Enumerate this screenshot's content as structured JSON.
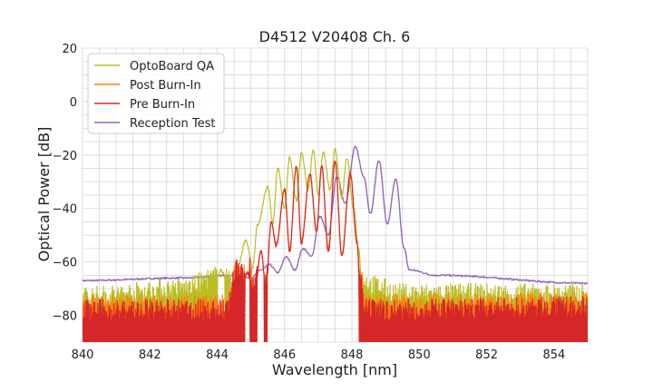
{
  "chart_data": {
    "type": "line",
    "title": "D4512 V20408 Ch. 6",
    "xlabel": "Wavelength [nm]",
    "ylabel": "Optical Power [dB]",
    "xlim": [
      840,
      855
    ],
    "ylim": [
      -90,
      20
    ],
    "xticks": [
      840,
      842,
      844,
      846,
      848,
      850,
      852,
      854
    ],
    "yticks": [
      20,
      0,
      -20,
      -40,
      -60,
      -80
    ],
    "xtick_labels": [
      "840",
      "842",
      "844",
      "846",
      "848",
      "850",
      "852",
      "854"
    ],
    "ytick_labels": [
      "20",
      "0",
      "−20",
      "−40",
      "−60",
      "−80"
    ],
    "grid": true,
    "legend": "top-left",
    "series": [
      {
        "name": "OptoBoard QA",
        "color": "#bcbd22",
        "x": [
          840.0,
          843.0,
          843.9,
          844.1,
          844.3,
          844.6,
          844.85,
          845.05,
          845.2,
          845.5,
          845.65,
          845.8,
          846.0,
          846.15,
          846.35,
          846.5,
          846.7,
          846.85,
          847.0,
          847.15,
          847.35,
          847.5,
          847.7,
          847.85,
          848.05,
          848.2,
          848.3,
          848.6,
          849.5,
          855.0
        ],
        "y": [
          -77,
          -74,
          -70,
          -63,
          -67,
          -62,
          -52,
          -62,
          -46,
          -32,
          -45,
          -25,
          -40,
          -21,
          -37,
          -19,
          -33,
          -18,
          -35,
          -19,
          -33,
          -18,
          -36,
          -21,
          -40,
          -55,
          -70,
          -73,
          -76,
          -76
        ]
      },
      {
        "name": "Post Burn-In",
        "color": "#ff7f0e",
        "x": [
          840.0,
          844.3,
          844.45,
          844.55,
          844.7,
          844.9,
          845.1,
          845.3,
          845.45,
          845.6,
          845.75,
          846.0,
          846.15,
          846.35,
          846.5,
          846.75,
          846.95,
          847.1,
          847.3,
          847.5,
          847.7,
          847.95,
          848.15,
          848.25,
          848.4,
          855.0
        ],
        "y": [
          -80,
          -80,
          -72,
          -67,
          -69,
          -64,
          -72,
          -56,
          -69,
          -45,
          -53,
          -33,
          -55,
          -24,
          -52,
          -27,
          -48,
          -24,
          -55,
          -22,
          -57,
          -27,
          -52,
          -70,
          -80,
          -79
        ]
      },
      {
        "name": "Pre Burn-In",
        "color": "#d62728",
        "x": [
          840.0,
          844.3,
          844.45,
          844.55,
          844.7,
          844.9,
          845.1,
          845.3,
          845.45,
          845.6,
          845.75,
          846.0,
          846.15,
          846.35,
          846.5,
          846.75,
          846.95,
          847.1,
          847.3,
          847.5,
          847.7,
          847.95,
          848.15,
          848.25,
          848.4,
          855.0
        ],
        "y": [
          -82,
          -82,
          -72,
          -67,
          -69,
          -64,
          -73,
          -56,
          -70,
          -45,
          -54,
          -33,
          -56,
          -24,
          -53,
          -27,
          -49,
          -24,
          -56,
          -22,
          -58,
          -27,
          -53,
          -72,
          -82,
          -81
        ]
      },
      {
        "name": "Reception Test",
        "color": "#9467bd",
        "x": [
          840.0,
          843.0,
          844.5,
          845.0,
          845.3,
          845.55,
          845.8,
          846.05,
          846.3,
          846.55,
          846.8,
          847.05,
          847.3,
          847.55,
          847.8,
          848.1,
          848.35,
          848.55,
          848.8,
          849.05,
          849.3,
          849.55,
          849.7,
          850.5,
          855.0
        ],
        "y": [
          -67,
          -66,
          -65,
          -66,
          -63,
          -61,
          -64,
          -58,
          -63,
          -55,
          -58,
          -43,
          -50,
          -28,
          -38,
          -17,
          -28,
          -42,
          -22,
          -46,
          -29,
          -55,
          -63,
          -65,
          -68
        ]
      }
    ]
  }
}
